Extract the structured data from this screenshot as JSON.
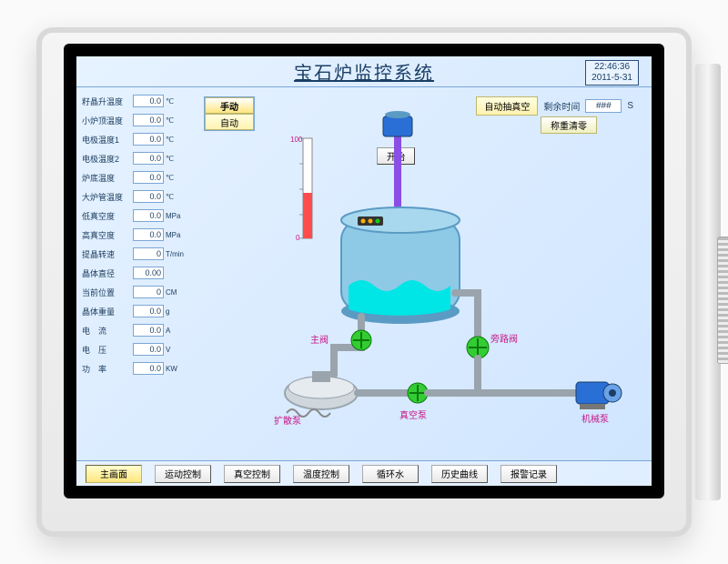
{
  "header": {
    "title": "宝石炉监控系统",
    "clock_time": "22:46:36",
    "clock_date": "2011-5-31"
  },
  "colors": {
    "screen_bg_from": "#e6f2ff",
    "screen_bg_to": "#cfe5ff",
    "accent": "#1b3f66",
    "tank_body": "#8ecae6",
    "tank_shadow": "#5a9bc4",
    "liquid": "#00e5e5",
    "pipe": "#b0b8bf",
    "label_magenta": "#c71585",
    "motor_blue": "#2a6fd6"
  },
  "sidebar_params": [
    {
      "label": "籽晶升温度",
      "value": "0.0",
      "unit": "℃"
    },
    {
      "label": "小炉顶温度",
      "value": "0.0",
      "unit": "℃"
    },
    {
      "label": "电极温度1",
      "value": "0.0",
      "unit": "℃"
    },
    {
      "label": "电极温度2",
      "value": "0.0",
      "unit": "℃"
    },
    {
      "label": "炉底温度",
      "value": "0.0",
      "unit": "℃"
    },
    {
      "label": "大炉管温度",
      "value": "0.0",
      "unit": "℃"
    },
    {
      "label": "低真空度",
      "value": "0.0",
      "unit": "MPa"
    },
    {
      "label": "高真空度",
      "value": "0.0",
      "unit": "MPa"
    },
    {
      "label": "提晶转速",
      "value": "0",
      "unit": "T/min"
    },
    {
      "label": "晶体直径",
      "value": "0.00",
      "unit": ""
    },
    {
      "label": "当前位置",
      "value": "0",
      "unit": "CM"
    },
    {
      "label": "晶体重量",
      "value": "0.0",
      "unit": "g"
    },
    {
      "label": "电　流",
      "value": "0.0",
      "unit": "A"
    },
    {
      "label": "电　压",
      "value": "0.0",
      "unit": "V"
    },
    {
      "label": "功　率",
      "value": "0.0",
      "unit": "KW"
    }
  ],
  "mode": {
    "manual_label": "手动",
    "auto_label": "自动",
    "active": "manual"
  },
  "toprow": {
    "autovac_label": "自动抽真空",
    "remaining_label": "剩余时间",
    "remaining_value": "###",
    "remaining_unit": "S",
    "clear_label": "称重清零",
    "start_label": "开始"
  },
  "equipment_labels": {
    "main_valve": "主阀",
    "butterfly_valve": "旁路阀",
    "diffusion_pump": "扩散泵",
    "vacuum_pump": "真空泵",
    "mech_pump": "机械泵"
  },
  "thermometer": {
    "scale_top": "100",
    "scale_bottom": "0"
  },
  "bottom_nav": [
    {
      "key": "main",
      "label": "主画面",
      "active": true
    },
    {
      "key": "motion",
      "label": "运动控制",
      "active": false
    },
    {
      "key": "vacuum",
      "label": "真空控制",
      "active": false
    },
    {
      "key": "temp",
      "label": "温度控制",
      "active": false
    },
    {
      "key": "cooling",
      "label": "循环水",
      "active": false
    },
    {
      "key": "history",
      "label": "历史曲线",
      "active": false
    },
    {
      "key": "alarm",
      "label": "报警记录",
      "active": false
    }
  ]
}
